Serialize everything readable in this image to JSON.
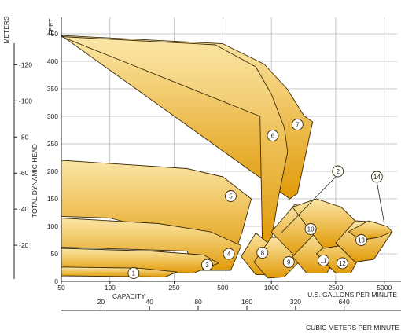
{
  "chart_data": {
    "type": "area",
    "title": "",
    "xlabel": "CAPACITY",
    "x_unit_label": "U.S. GALLONS PER MINUTE",
    "x2_unit_label": "CUBIC METERS PER MINUTE",
    "ylabel": "TOTAL DYNAMIC HEAD",
    "y_unit_label": "FEET",
    "y2_unit_label": "METERS",
    "x_scale": "log",
    "xlim": [
      50,
      6000
    ],
    "ylim": [
      0,
      480
    ],
    "grid": true,
    "x_ticks": [
      "50",
      "100",
      "250",
      "500",
      "1000",
      "2500",
      "5000"
    ],
    "x_tick_values": [
      50,
      100,
      250,
      500,
      1000,
      2500,
      5000
    ],
    "y_ticks": [
      0,
      50,
      100,
      150,
      200,
      250,
      300,
      350,
      400,
      450
    ],
    "y2_ticks": [
      20,
      40,
      60,
      80,
      100,
      120
    ],
    "x2_ticks": [
      "20",
      "40",
      "80",
      "160",
      "320",
      "640"
    ],
    "x2_tick_gpm": [
      88,
      176,
      352,
      705,
      1410,
      2820
    ],
    "colors": {
      "fill_light": "#fbe6a6",
      "fill_dark": "#e19a08",
      "edge": "#3a2a0a"
    },
    "series": [
      {
        "name": "7",
        "points": [
          [
            50,
            447
          ],
          [
            500,
            432
          ],
          [
            900,
            395
          ],
          [
            1250,
            350
          ],
          [
            1600,
            300
          ],
          [
            1800,
            290
          ],
          [
            1450,
            160
          ],
          [
            1300,
            150
          ]
        ]
      },
      {
        "name": "6",
        "points": [
          [
            50,
            445
          ],
          [
            450,
            430
          ],
          [
            800,
            390
          ],
          [
            1000,
            340
          ],
          [
            1200,
            280
          ],
          [
            1260,
            235
          ],
          [
            1100,
            150
          ],
          [
            1000,
            75
          ],
          [
            880,
            60
          ],
          [
            850,
            300
          ]
        ]
      },
      {
        "name": "5",
        "points": [
          [
            50,
            220
          ],
          [
            300,
            205
          ],
          [
            500,
            190
          ],
          [
            750,
            150
          ],
          [
            660,
            90
          ],
          [
            560,
            30
          ],
          [
            450,
            30
          ],
          [
            400,
            70
          ],
          [
            100,
            115
          ],
          [
            50,
            118
          ]
        ]
      },
      {
        "name": "4",
        "points": [
          [
            50,
            115
          ],
          [
            200,
            105
          ],
          [
            420,
            90
          ],
          [
            650,
            65
          ],
          [
            560,
            20
          ],
          [
            350,
            20
          ],
          [
            300,
            55
          ],
          [
            50,
            62
          ]
        ]
      },
      {
        "name": "3",
        "points": [
          [
            50,
            60
          ],
          [
            180,
            55
          ],
          [
            380,
            48
          ],
          [
            470,
            33
          ],
          [
            330,
            15
          ],
          [
            50,
            18
          ]
        ]
      },
      {
        "name": "1",
        "points": [
          [
            50,
            26
          ],
          [
            150,
            24
          ],
          [
            260,
            17
          ],
          [
            220,
            8
          ],
          [
            50,
            10
          ]
        ]
      },
      {
        "name": "8",
        "points": [
          [
            650,
            45
          ],
          [
            800,
            88
          ],
          [
            950,
            70
          ],
          [
            1150,
            40
          ],
          [
            1000,
            12
          ],
          [
            800,
            12
          ]
        ]
      },
      {
        "name": "9",
        "points": [
          [
            780,
            35
          ],
          [
            1000,
            80
          ],
          [
            1400,
            80
          ],
          [
            1600,
            45
          ],
          [
            1200,
            8
          ],
          [
            950,
            6
          ]
        ]
      },
      {
        "name": "10",
        "points": [
          [
            1000,
            90
          ],
          [
            1400,
            140
          ],
          [
            2100,
            120
          ],
          [
            2600,
            100
          ],
          [
            1900,
            55
          ],
          [
            1400,
            45
          ]
        ]
      },
      {
        "name": "11",
        "points": [
          [
            1350,
            45
          ],
          [
            1900,
            90
          ],
          [
            2600,
            80
          ],
          [
            2700,
            55
          ],
          [
            2200,
            15
          ],
          [
            1650,
            15
          ]
        ]
      },
      {
        "name": "12",
        "points": [
          [
            1900,
            50
          ],
          [
            2600,
            85
          ],
          [
            3400,
            75
          ],
          [
            3600,
            50
          ],
          [
            3100,
            15
          ],
          [
            2500,
            15
          ]
        ]
      },
      {
        "name": "2",
        "points": [
          [
            1350,
            135
          ],
          [
            1900,
            150
          ],
          [
            2700,
            135
          ],
          [
            3300,
            110
          ],
          [
            2700,
            65
          ],
          [
            2100,
            60
          ]
        ]
      },
      {
        "name": "13",
        "points": [
          [
            2500,
            70
          ],
          [
            3300,
            110
          ],
          [
            4300,
            108
          ],
          [
            5600,
            90
          ],
          [
            4300,
            40
          ],
          [
            3300,
            35
          ]
        ]
      },
      {
        "name": "14",
        "points": [
          [
            3000,
            90
          ],
          [
            4000,
            110
          ],
          [
            5200,
            100
          ],
          [
            5600,
            90
          ],
          [
            4600,
            80
          ],
          [
            3600,
            75
          ]
        ]
      }
    ],
    "labels": [
      {
        "text": "1",
        "x": 140,
        "y": 15
      },
      {
        "text": "3",
        "x": 400,
        "y": 30
      },
      {
        "text": "4",
        "x": 545,
        "y": 50
      },
      {
        "text": "5",
        "x": 560,
        "y": 155
      },
      {
        "text": "6",
        "x": 1020,
        "y": 265
      },
      {
        "text": "7",
        "x": 1450,
        "y": 285
      },
      {
        "text": "8",
        "x": 880,
        "y": 52
      },
      {
        "text": "9",
        "x": 1280,
        "y": 35
      },
      {
        "text": "10",
        "x": 1750,
        "y": 95
      },
      {
        "text": "11",
        "x": 2100,
        "y": 38
      },
      {
        "text": "12",
        "x": 2750,
        "y": 33
      },
      {
        "text": "13",
        "x": 3600,
        "y": 75
      },
      {
        "text": "2",
        "x": 2580,
        "y": 200
      },
      {
        "text": "14",
        "x": 4500,
        "y": 190
      }
    ]
  }
}
